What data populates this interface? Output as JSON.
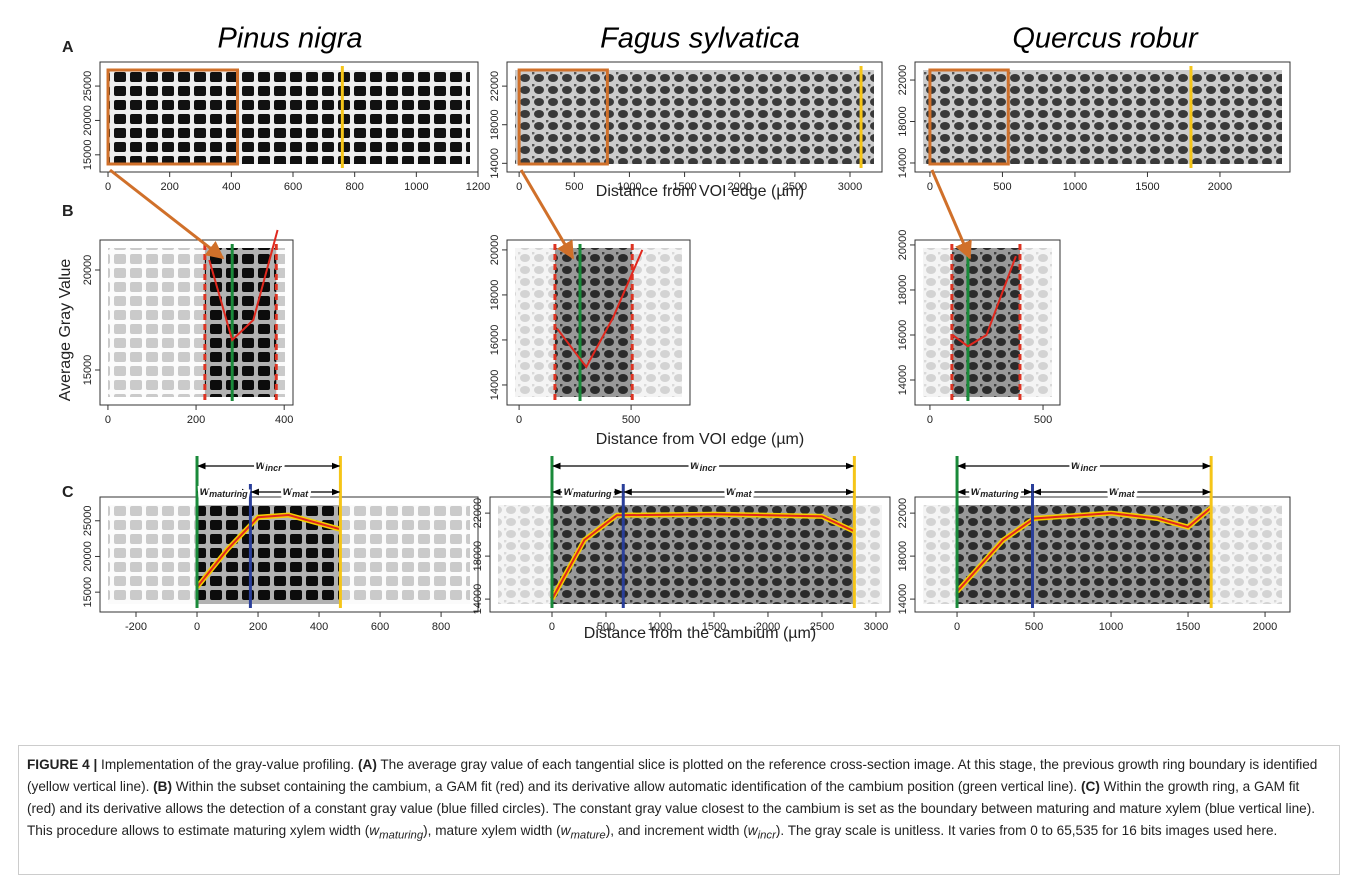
{
  "panel_letters": [
    "A",
    "B",
    "C"
  ],
  "species": [
    "Pinus nigra",
    "Fagus sylvatica",
    "Quercus robur"
  ],
  "x_label_A": "Distance from VOI edge (µm)",
  "x_label_B": "Distance from VOI edge (µm)",
  "y_label_B": "Average Gray Value",
  "x_label_C": "Distance from the cambium (µm)",
  "width_labels": {
    "incr": {
      "main": "w",
      "sub": "incr"
    },
    "maturing": {
      "main": "w",
      "sub": "maturing"
    },
    "mat": {
      "main": "w",
      "sub": "mat"
    }
  },
  "panels": {
    "A": [
      {
        "xlim": [
          -26,
          1200
        ],
        "ylim": [
          12500,
          28500
        ],
        "xticks": [
          0,
          200,
          400,
          600,
          800,
          1000,
          1200
        ],
        "yticks": [
          15000,
          20000,
          25000
        ],
        "subset": [
          0,
          420
        ],
        "yellow": 760
      },
      {
        "xlim": [
          -110,
          3290
        ],
        "ylim": [
          13100,
          24500
        ],
        "xticks": [
          0,
          500,
          1000,
          1500,
          2000,
          2500,
          3000
        ],
        "yticks": [
          14000,
          18000,
          22000
        ],
        "subset": [
          0,
          800
        ],
        "yellow": 3100
      },
      {
        "xlim": [
          -103,
          2483
        ],
        "ylim": [
          13130,
          23740
        ],
        "xticks": [
          0,
          500,
          1000,
          1500,
          2000
        ],
        "yticks": [
          14000,
          18000,
          22000
        ],
        "subset": [
          0,
          540
        ],
        "yellow": 1800
      }
    ],
    "B": [
      {
        "xlim": [
          -18,
          420
        ],
        "ylim": [
          13250,
          21500
        ],
        "xticks": [
          0,
          200,
          400
        ],
        "yticks": [
          15000,
          20000
        ],
        "dark": [
          220,
          382
        ],
        "green": 282,
        "fit": {
          "x": [
            230,
            282,
            330,
            385
          ],
          "y": [
            20500,
            16500,
            17500,
            22000
          ]
        }
      },
      {
        "xlim": [
          -54,
          763
        ],
        "ylim": [
          13110,
          20440
        ],
        "xticks": [
          0,
          500
        ],
        "yticks": [
          14000,
          16000,
          18000,
          20000
        ],
        "dark": [
          160,
          505
        ],
        "green": 272,
        "fit": {
          "x": [
            170,
            300,
            420,
            550
          ],
          "y": [
            16500,
            14800,
            17000,
            20000
          ]
        }
      },
      {
        "xlim": [
          -66,
          575
        ],
        "ylim": [
          12890,
          20220
        ],
        "xticks": [
          0,
          500
        ],
        "yticks": [
          14000,
          16000,
          18000,
          20000
        ],
        "dark": [
          97,
          398
        ],
        "green": 168,
        "fit": {
          "x": [
            100,
            168,
            250,
            380
          ],
          "y": [
            16000,
            15500,
            16000,
            19500
          ]
        }
      }
    ],
    "C": [
      {
        "xlim": [
          -318,
          921
        ],
        "ylim": [
          12220,
          28330
        ],
        "xticks": [
          -200,
          0,
          200,
          400,
          600,
          800
        ],
        "yticks": [
          15000,
          20000,
          25000
        ],
        "green": 0,
        "blue": 175,
        "yellow": 470,
        "fit": {
          "x": [
            0,
            100,
            200,
            300,
            470
          ],
          "y": [
            15700,
            21000,
            25500,
            25800,
            23800
          ]
        }
      },
      {
        "xlim": [
          -574,
          3130
        ],
        "ylim": [
          12800,
          23500
        ],
        "xticks": [
          0,
          500,
          1000,
          1500,
          2000,
          2500,
          3000
        ],
        "yticks": [
          14000,
          18000,
          22000
        ],
        "green": 0,
        "blue": 660,
        "yellow": 2800,
        "fit": {
          "x": [
            0,
            300,
            600,
            1500,
            2500,
            2800
          ],
          "y": [
            14000,
            19500,
            21800,
            21900,
            21700,
            20300
          ]
        }
      },
      {
        "xlim": [
          -273,
          2162
        ],
        "ylim": [
          12800,
          23500
        ],
        "xticks": [
          0,
          500,
          1000,
          1500,
          2000
        ],
        "yticks": [
          14000,
          18000,
          22000
        ],
        "green": 0,
        "blue": 490,
        "yellow": 1650,
        "fit": {
          "x": [
            0,
            300,
            500,
            1000,
            1300,
            1500,
            1650
          ],
          "y": [
            14700,
            19500,
            21500,
            22000,
            21500,
            20700,
            22500
          ]
        }
      }
    ]
  },
  "caption": [
    "FIGURE 4 |",
    " Implementation of the gray-value profiling. ",
    "(A)",
    " The average gray value of each tangential slice is plotted on the reference cross-section image. At this stage, the previous growth ring boundary is identified (yellow vertical line). ",
    "(B)",
    " Within the subset containing the cambium, a GAM fit (red) and its derivative allow automatic identification of the cambium position (green vertical line). ",
    "(C)",
    " Within the growth ring, a GAM fit (red) and its derivative allows the detection of a constant gray value (blue filled circles). The constant gray value closest to the cambium is set as the boundary between maturing and mature xylem (blue vertical line). This procedure allows to estimate maturing xylem width (",
    "w",
    "maturing",
    "), mature xylem width (",
    "w",
    "mature",
    "), and increment width (",
    "w",
    "incr",
    "). The gray scale is unitless. It varies from 0 to 65,535 for 16 bits images used here."
  ]
}
